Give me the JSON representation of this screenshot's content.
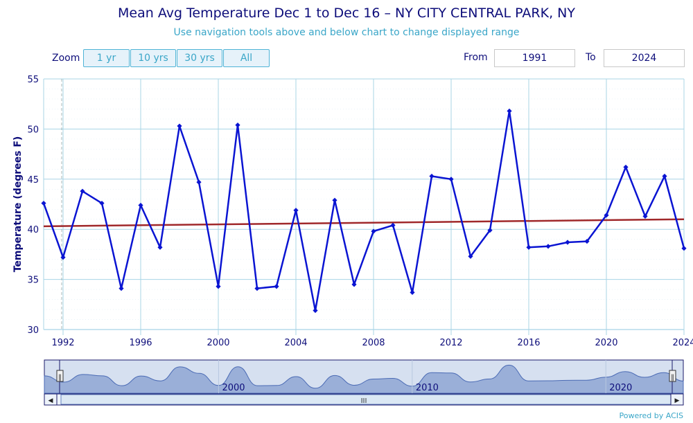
{
  "header": {
    "title": "Mean Avg Temperature Dec 1 to Dec 16 – NY CITY CENTRAL PARK, NY",
    "subtitle": "Use navigation tools above and below chart to change displayed range"
  },
  "controls": {
    "zoom_label": "Zoom",
    "zoom_buttons": [
      "1 yr",
      "10 yrs",
      "30 yrs",
      "All"
    ],
    "from_label": "From",
    "from_value": "1991",
    "to_label": "To",
    "to_value": "2024"
  },
  "navigator": {
    "labels": [
      "2000",
      "2010",
      "2020"
    ],
    "scroll_grip": "III",
    "left_arrow": "◀",
    "right_arrow": "▶",
    "handle_glyph": "‖"
  },
  "footer": {
    "credit": "Powered by ACIS"
  },
  "colors": {
    "series": "#0a14d2",
    "trend": "#a0282a",
    "grid": "#a8d4e6",
    "text": "#0d0d7a",
    "navigator_fill": "#8fa6d4"
  },
  "chart_data": {
    "type": "line",
    "title": "Mean Avg Temperature Dec 1 to Dec 16 – NY CITY CENTRAL PARK, NY",
    "xlabel": "",
    "ylabel": "Temperature (degrees F)",
    "xlim": [
      1991,
      2024
    ],
    "ylim": [
      30,
      55
    ],
    "x_ticks": [
      1992,
      1996,
      2000,
      2004,
      2008,
      2012,
      2016,
      2020,
      2024
    ],
    "y_ticks": [
      30,
      35,
      40,
      45,
      50,
      55
    ],
    "grid": true,
    "x": [
      1991,
      1992,
      1993,
      1994,
      1995,
      1996,
      1997,
      1998,
      1999,
      2000,
      2001,
      2002,
      2003,
      2004,
      2005,
      2006,
      2007,
      2008,
      2009,
      2010,
      2011,
      2012,
      2013,
      2014,
      2015,
      2016,
      2017,
      2018,
      2019,
      2020,
      2021,
      2022,
      2023,
      2024
    ],
    "series": [
      {
        "values": [
          42.6,
          37.2,
          43.8,
          42.6,
          34.1,
          42.4,
          38.2,
          50.3,
          44.7,
          34.3,
          50.4,
          34.1,
          34.3,
          41.9,
          31.9,
          42.9,
          34.5,
          39.8,
          40.4,
          33.7,
          45.3,
          45.0,
          37.3,
          39.9,
          51.8,
          38.2,
          38.3,
          38.7,
          38.8,
          41.4,
          46.2,
          41.3,
          45.3,
          38.1
        ]
      }
    ],
    "trend_line": {
      "x": [
        1991,
        2024
      ],
      "y": [
        40.3,
        41.0
      ]
    }
  }
}
